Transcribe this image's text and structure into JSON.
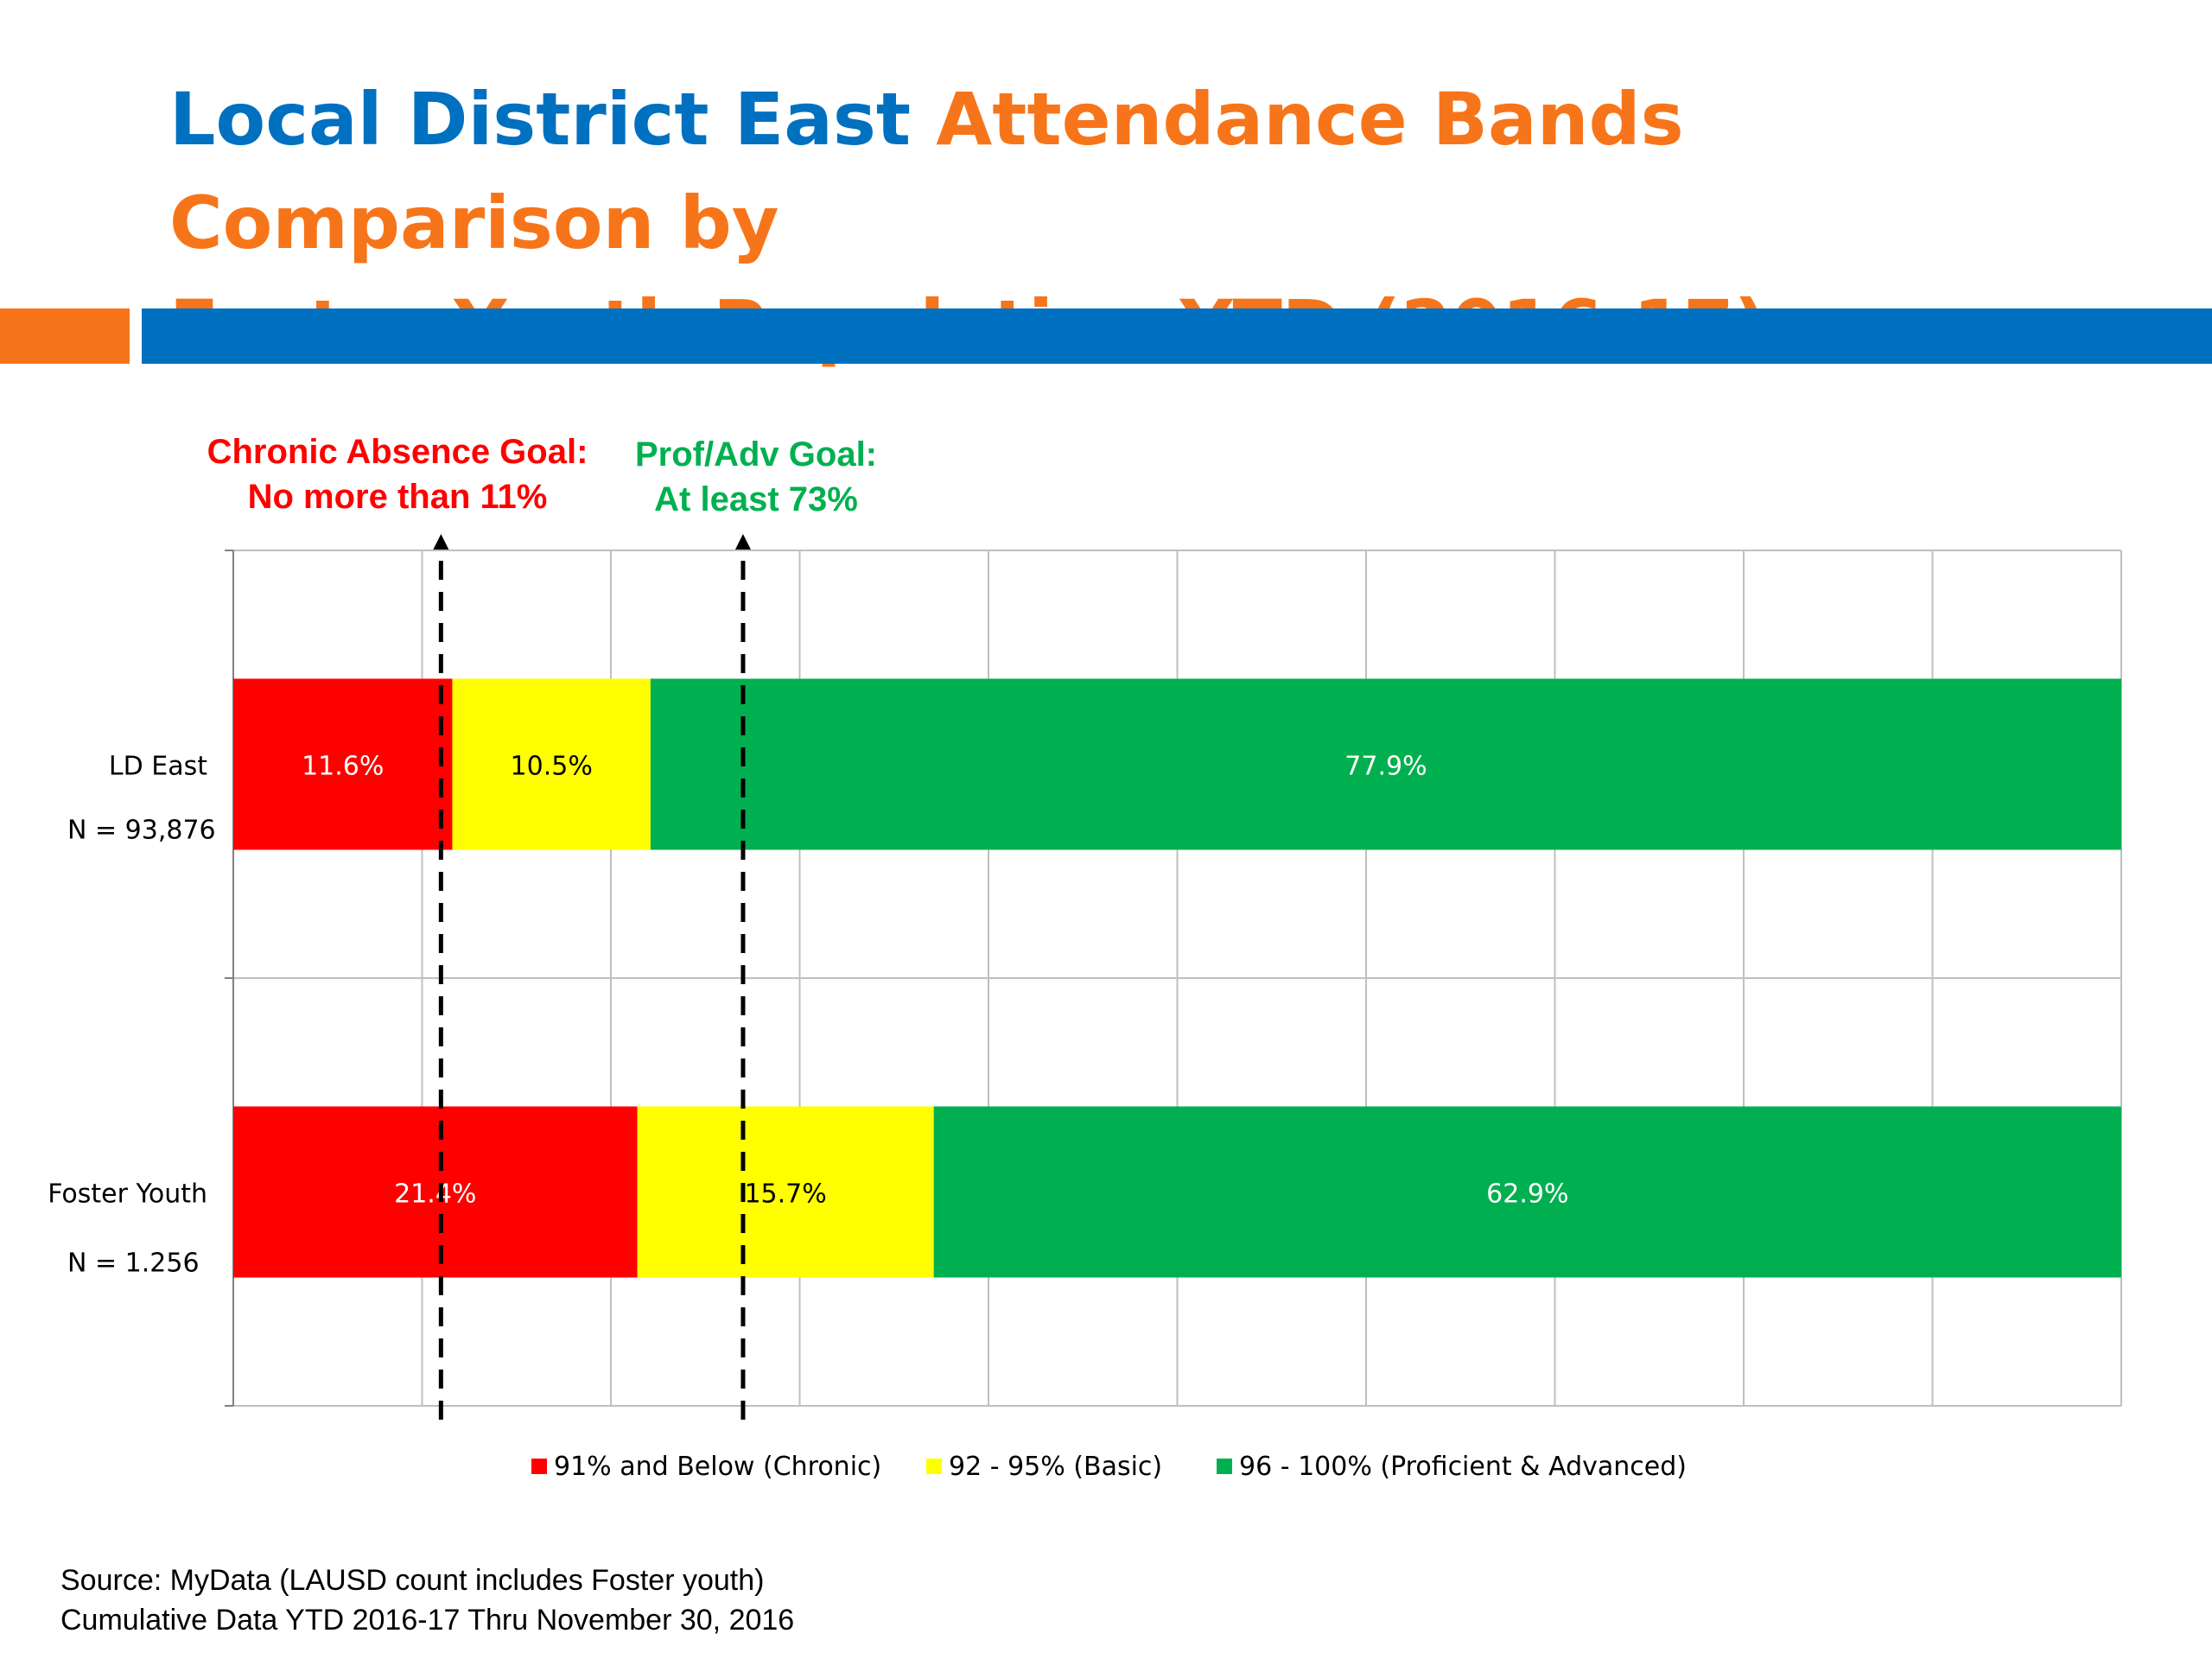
{
  "slide": {
    "title_part1": "Local District East",
    "title_part2": "Attendance Bands Comparison by",
    "title_part3": "Foster Youth Population YTD (2016-17)",
    "colors": {
      "blue": "#0070C0",
      "orange": "#F7751A"
    }
  },
  "goals": {
    "chronic_line1": "Chronic Absence Goal:",
    "chronic_line2": "No more than 11%",
    "chronic_value": 11,
    "prof_line1": "Prof/Adv Goal:",
    "prof_line2": "At least 73%",
    "prof_value": 27
  },
  "chart_data": {
    "type": "bar",
    "orientation": "horizontal",
    "stacked": true,
    "categories": [
      {
        "label": "LD East",
        "sublabel": "N = 93,876"
      },
      {
        "label": "Foster Youth",
        "sublabel": "N = 1.256"
      }
    ],
    "series": [
      {
        "name": "91% and Below (Chronic)",
        "color": "#FF0000",
        "values": [
          11.6,
          21.4
        ],
        "labels": [
          "11.6%",
          "21.4%"
        ]
      },
      {
        "name": "92 - 95% (Basic)",
        "color": "#FFFF00",
        "values": [
          10.5,
          15.7
        ],
        "labels": [
          "10.5%",
          "15.7%"
        ]
      },
      {
        "name": "96 - 100% (Proficient & Advanced)",
        "color": "#00B050",
        "values": [
          77.9,
          62.9
        ],
        "labels": [
          "77.9%",
          "62.9%"
        ]
      }
    ],
    "xlim": [
      0,
      100
    ],
    "x_gridlines": 10,
    "grid": true,
    "legend_position": "bottom"
  },
  "footer": {
    "source": "Source: MyData (LAUSD count includes Foster youth)",
    "cumulative": "Cumulative Data  YTD 2016-17 Thru November 30, 2016"
  }
}
